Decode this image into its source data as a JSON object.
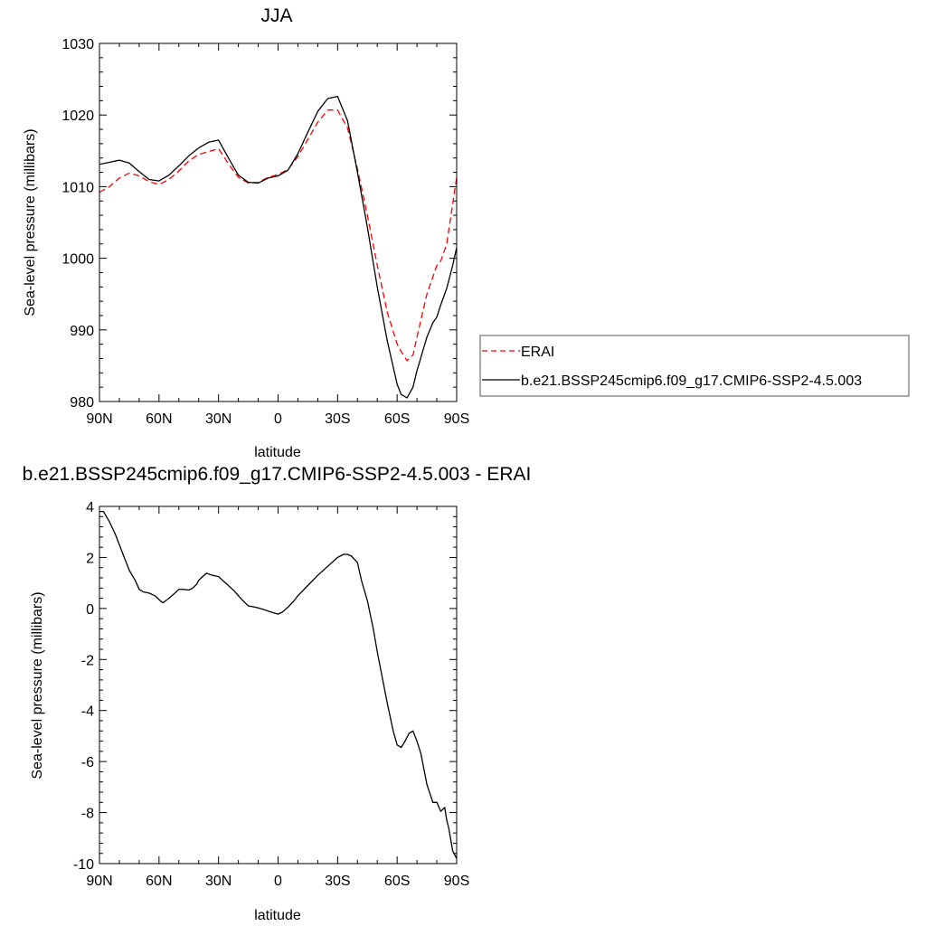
{
  "chart_data": [
    {
      "type": "line",
      "title": "JJA",
      "xlabel": "latitude",
      "ylabel": "Sea-level pressure (millibars)",
      "xlim": [
        90,
        -90
      ],
      "ylim": [
        980,
        1030
      ],
      "x_ticks": [
        90,
        60,
        30,
        0,
        -30,
        -60,
        -90
      ],
      "x_tick_labels": [
        "90N",
        "60N",
        "30N",
        "0",
        "30S",
        "60S",
        "90S"
      ],
      "y_ticks": [
        980,
        990,
        1000,
        1010,
        1020,
        1030
      ],
      "y_tick_labels": [
        "980",
        "990",
        "1000",
        "1010",
        "1020",
        "1030"
      ],
      "grid": false,
      "legend_position": "right",
      "series": [
        {
          "name": "ERAI",
          "color": "#ff0000",
          "style": "dashed",
          "x": [
            90,
            85,
            80,
            75,
            70,
            65,
            60,
            55,
            50,
            45,
            40,
            35,
            30,
            25,
            20,
            15,
            10,
            5,
            0,
            -5,
            -10,
            -15,
            -20,
            -25,
            -30,
            -35,
            -40,
            -45,
            -50,
            -55,
            -60,
            -62,
            -65,
            -68,
            -70,
            -75,
            -80,
            -82,
            -85,
            -90
          ],
          "y": [
            1009.2,
            1010.0,
            1011.2,
            1011.9,
            1011.5,
            1010.7,
            1010.3,
            1011.0,
            1012.2,
            1013.6,
            1014.5,
            1014.9,
            1015.3,
            1013.2,
            1011.3,
            1010.5,
            1010.6,
            1011.3,
            1011.7,
            1012.4,
            1014.2,
            1016.6,
            1019.0,
            1020.7,
            1020.7,
            1018.2,
            1012.5,
            1006.0,
            999.0,
            992.5,
            988.0,
            987.0,
            985.7,
            986.5,
            989.0,
            995.0,
            999.0,
            999.6,
            1002.0,
            1011.3
          ]
        },
        {
          "name": "b.e21.BSSP245cmip6.f09_g17.CMIP6-SSP2-4.5.003",
          "color": "#000000",
          "style": "solid",
          "x": [
            90,
            85,
            80,
            75,
            70,
            65,
            60,
            55,
            50,
            45,
            40,
            35,
            30,
            25,
            20,
            15,
            10,
            5,
            0,
            -5,
            -10,
            -15,
            -20,
            -25,
            -30,
            -35,
            -40,
            -45,
            -50,
            -55,
            -60,
            -62,
            -65,
            -68,
            -70,
            -75,
            -78,
            -80,
            -82,
            -85,
            -88,
            -90
          ],
          "y": [
            1013.1,
            1013.4,
            1013.7,
            1013.3,
            1012.1,
            1011.0,
            1010.8,
            1011.6,
            1012.9,
            1014.3,
            1015.4,
            1016.2,
            1016.5,
            1014.0,
            1011.6,
            1010.6,
            1010.5,
            1011.2,
            1011.5,
            1012.3,
            1014.6,
            1017.6,
            1020.5,
            1022.3,
            1022.6,
            1019.2,
            1012.0,
            1004.3,
            996.0,
            988.5,
            982.4,
            981.0,
            980.5,
            982.0,
            984.3,
            989.0,
            991.0,
            991.8,
            993.5,
            995.8,
            999.0,
            1001.5
          ]
        }
      ]
    },
    {
      "type": "line",
      "title": "b.e21.BSSP245cmip6.f09_g17.CMIP6-SSP2-4.5.003 - ERAI",
      "xlabel": "latitude",
      "ylabel": "Sea-level pressure (millibars)",
      "xlim": [
        90,
        -90
      ],
      "ylim": [
        -10,
        4
      ],
      "x_ticks": [
        90,
        60,
        30,
        0,
        -30,
        -60,
        -90
      ],
      "x_tick_labels": [
        "90N",
        "60N",
        "30N",
        "0",
        "30S",
        "60S",
        "90S"
      ],
      "y_ticks": [
        -10,
        -8,
        -6,
        -4,
        -2,
        0,
        2,
        4
      ],
      "y_tick_labels": [
        "-10",
        "-8",
        "-6",
        "-4",
        "-2",
        "0",
        "2",
        "4"
      ],
      "grid": false,
      "series": [
        {
          "color": "#000000",
          "style": "solid",
          "x": [
            90,
            88,
            85,
            82,
            78,
            75,
            72,
            70,
            68,
            65,
            62,
            60,
            58,
            55,
            52,
            50,
            48,
            45,
            43,
            41,
            40,
            38,
            36,
            35,
            33,
            30,
            28,
            25,
            22,
            20,
            17,
            15,
            12,
            10,
            7,
            5,
            2,
            0,
            -2,
            -5,
            -8,
            -10,
            -15,
            -20,
            -25,
            -30,
            -33,
            -35,
            -37,
            -40,
            -42,
            -45,
            -48,
            -50,
            -55,
            -58,
            -60,
            -62,
            -64,
            -66,
            -68,
            -70,
            -72,
            -74,
            -75,
            -78,
            -80,
            -82,
            -84,
            -85,
            -86,
            -88,
            -90
          ],
          "y": [
            3.8,
            3.8,
            3.4,
            2.9,
            2.1,
            1.5,
            1.1,
            0.75,
            0.65,
            0.6,
            0.5,
            0.35,
            0.22,
            0.4,
            0.6,
            0.75,
            0.75,
            0.72,
            0.8,
            0.95,
            1.1,
            1.25,
            1.38,
            1.35,
            1.3,
            1.25,
            1.1,
            0.9,
            0.68,
            0.5,
            0.25,
            0.1,
            0.06,
            0.02,
            -0.05,
            -0.1,
            -0.18,
            -0.22,
            -0.15,
            0.05,
            0.3,
            0.5,
            0.9,
            1.3,
            1.65,
            2.0,
            2.12,
            2.12,
            2.05,
            1.8,
            1.1,
            0.3,
            -0.8,
            -1.7,
            -3.7,
            -4.8,
            -5.35,
            -5.45,
            -5.2,
            -4.9,
            -4.8,
            -5.2,
            -5.7,
            -6.5,
            -6.9,
            -7.6,
            -7.6,
            -7.95,
            -7.8,
            -8.3,
            -8.6,
            -9.5,
            -9.8
          ]
        }
      ]
    }
  ]
}
